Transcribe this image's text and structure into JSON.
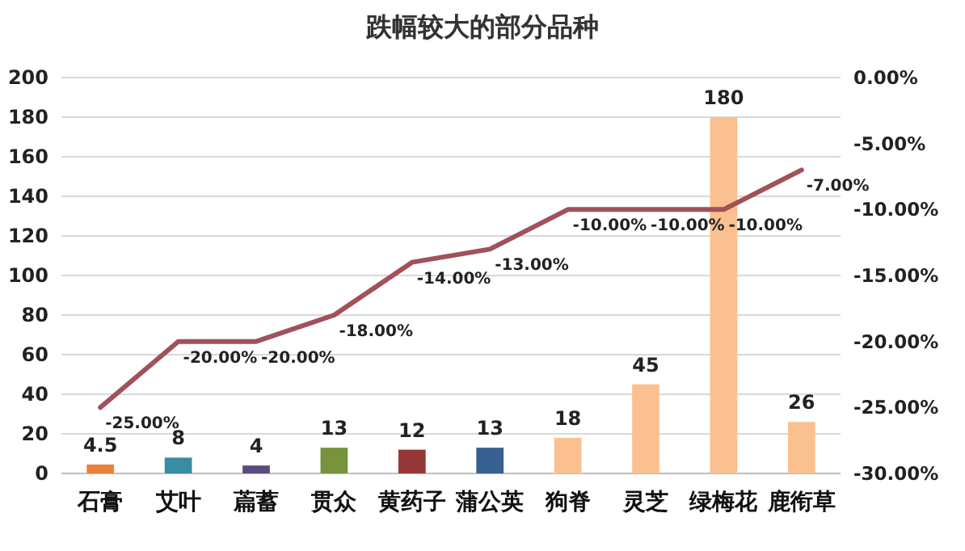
{
  "chart_data": {
    "type": "bar",
    "title": "跌幅较大的部分品种",
    "categories": [
      "石膏",
      "艾叶",
      "萹蓄",
      "贯众",
      "黄药子",
      "蒲公英",
      "狗脊",
      "灵芝",
      "绿梅花",
      "鹿衔草"
    ],
    "series": [
      {
        "colors": [
          "#e8823a",
          "#3a8ca3",
          "#5b4b7d",
          "#77933c",
          "#953735",
          "#376092",
          "#fac090",
          "#fac090",
          "#fac090",
          "#fac090"
        ],
        "values": [
          4.5,
          8,
          4,
          13,
          12,
          13,
          18,
          45,
          180,
          26
        ],
        "value_labels": [
          "4.5",
          "8",
          "4",
          "13",
          "12",
          "13",
          "18",
          "45",
          "180",
          "26"
        ]
      },
      {
        "type": "line",
        "axis": "y2",
        "color": "#a0515a",
        "values": [
          -25,
          -20,
          -20,
          -18,
          -14,
          -13,
          -10,
          -10,
          -10,
          -7
        ],
        "value_labels": [
          "-25.00%",
          "-20.00%",
          "-20.00%",
          "-18.00%",
          "-14.00%",
          "-13.00%",
          "-10.00%",
          "-10.00%",
          "-10.00%",
          "-7.00%"
        ]
      }
    ],
    "ylim": [
      0,
      200
    ],
    "yticks": [
      0,
      20,
      40,
      60,
      80,
      100,
      120,
      140,
      160,
      180,
      200
    ],
    "y2lim": [
      -30,
      0
    ],
    "y2ticks": [
      {
        "value": -30,
        "label": "-30.00%"
      },
      {
        "value": -25,
        "label": "-25.00%"
      },
      {
        "value": -20,
        "label": "-20.00%"
      },
      {
        "value": -15,
        "label": "-15.00%"
      },
      {
        "value": -10,
        "label": "-10.00%"
      },
      {
        "value": -5,
        "label": "-5.00%"
      },
      {
        "value": 0,
        "label": "0.00%"
      }
    ],
    "grid": "y",
    "marker": "none",
    "line_style": "solid"
  }
}
